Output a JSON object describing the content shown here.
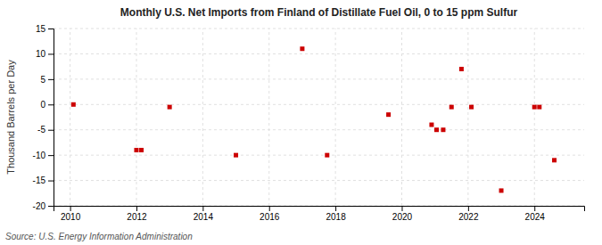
{
  "chart_data": {
    "type": "scatter",
    "title": "Monthly U.S. Net Imports from Finland of Distillate Fuel Oil, 0 to 15 ppm Sulfur",
    "ylabel": "Thousand Barrels per Day",
    "source": "Source: U.S. Energy Information Administration",
    "color": "#cc0000",
    "marker": "square",
    "grid": true,
    "xlim": [
      2009.5,
      2025.5
    ],
    "xticks": [
      2010,
      2012,
      2014,
      2016,
      2018,
      2020,
      2022,
      2024
    ],
    "ylim": [
      -20,
      15
    ],
    "yticks": [
      -20,
      -15,
      -10,
      -5,
      0,
      5,
      10,
      15
    ],
    "x": [
      2010.1,
      2012.0,
      2012.15,
      2013.0,
      2015.0,
      2017.0,
      2017.75,
      2019.6,
      2020.9,
      2021.05,
      2021.25,
      2021.5,
      2021.8,
      2022.1,
      2023.0,
      2024.0,
      2024.15,
      2024.6
    ],
    "values": [
      0,
      -9,
      -9,
      -0.5,
      -10,
      11,
      -10,
      -2,
      -4,
      -5,
      -5,
      -0.5,
      7,
      -0.5,
      -17,
      -0.5,
      -0.5,
      -11
    ]
  }
}
